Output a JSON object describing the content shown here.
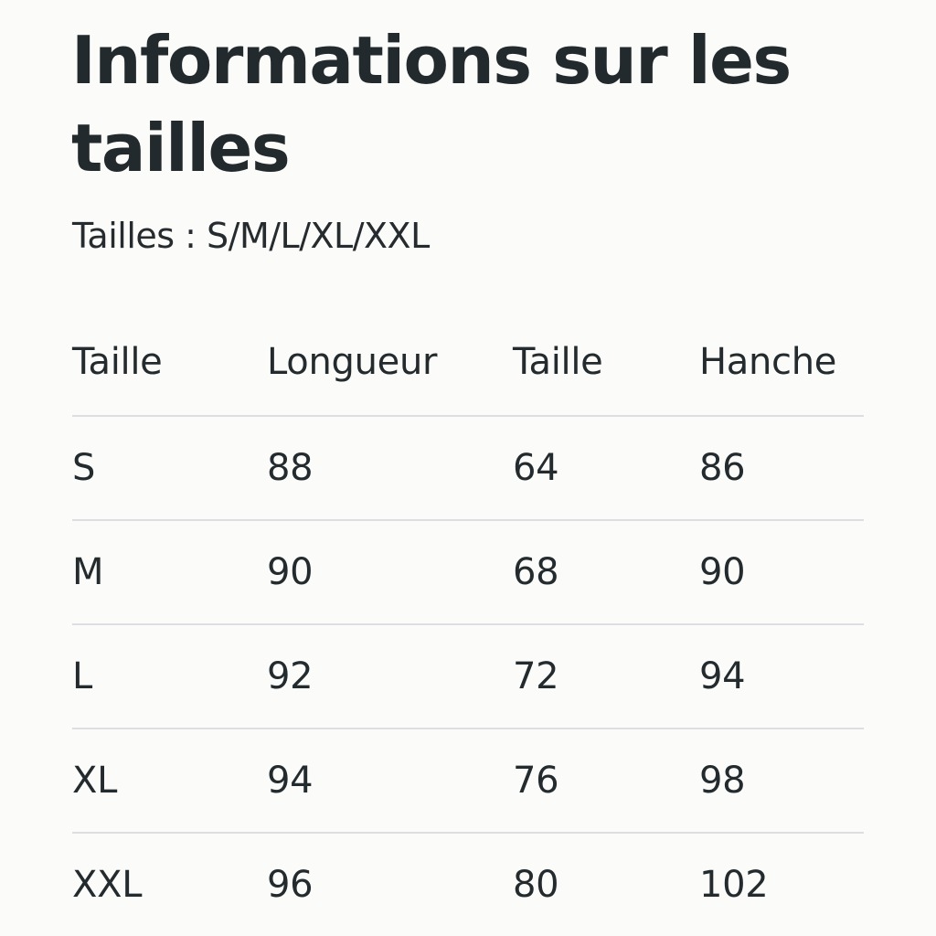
{
  "title": "Informations sur les tailles",
  "subtitle": "Tailles : S/M/L/XL/XXL",
  "table": {
    "headers": [
      "Taille",
      "Longueur",
      "Taille",
      "Hanche"
    ],
    "rows": [
      [
        "S",
        "88",
        "64",
        "86"
      ],
      [
        "M",
        "90",
        "68",
        "90"
      ],
      [
        "L",
        "92",
        "72",
        "94"
      ],
      [
        "XL",
        "94",
        "76",
        "98"
      ],
      [
        "XXL",
        "96",
        "80",
        "102"
      ]
    ]
  },
  "colors": {
    "background": "#fbfbf9",
    "text": "#242b2e",
    "divider": "#dcdee1"
  }
}
